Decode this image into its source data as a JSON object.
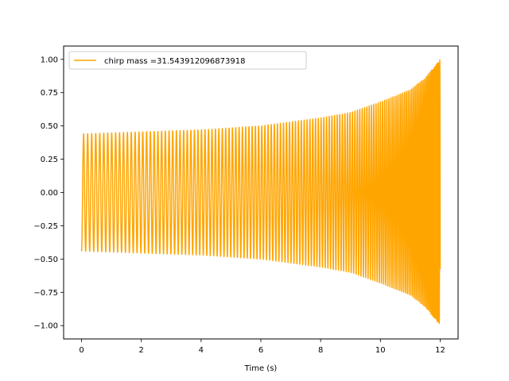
{
  "chart_data": {
    "type": "line",
    "title": "",
    "xlabel": "Time (s)",
    "ylabel": "",
    "xlim": [
      -0.6,
      12.6
    ],
    "ylim": [
      -1.1,
      1.1
    ],
    "x_ticks": [
      0,
      2,
      4,
      6,
      8,
      10,
      12
    ],
    "x_tick_labels": [
      "0",
      "2",
      "4",
      "6",
      "8",
      "10",
      "12"
    ],
    "y_ticks": [
      1.0,
      0.75,
      0.5,
      0.25,
      0.0,
      -0.25,
      -0.5,
      -0.75,
      -1.0
    ],
    "y_tick_labels": [
      "1.00",
      "0.75",
      "0.50",
      "0.25",
      "0.00",
      "−0.25",
      "−0.50",
      "−0.75",
      "−1.00"
    ],
    "grid": false,
    "legend_position": "top-left",
    "series": [
      {
        "name": "chirp mass =31.543912096873918",
        "color": "#ffa500",
        "t_start": 0.0,
        "t_end": 12.0,
        "envelope": [
          {
            "t": 0.0,
            "amp": 0.44
          },
          {
            "t": 2.0,
            "amp": 0.455
          },
          {
            "t": 4.0,
            "amp": 0.47
          },
          {
            "t": 6.0,
            "amp": 0.5
          },
          {
            "t": 8.0,
            "amp": 0.56
          },
          {
            "t": 9.0,
            "amp": 0.6
          },
          {
            "t": 10.0,
            "amp": 0.68
          },
          {
            "t": 11.0,
            "amp": 0.77
          },
          {
            "t": 11.5,
            "amp": 0.86
          },
          {
            "t": 12.0,
            "amp": 1.0
          }
        ],
        "initial_value": -0.43
      }
    ]
  }
}
